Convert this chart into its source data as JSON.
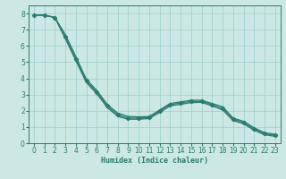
{
  "xlabel": "Humidex (Indice chaleur)",
  "bg_color": "#cce8e4",
  "grid_color": "#99cccc",
  "line_color": "#2a7a70",
  "xlim": [
    -0.5,
    23.5
  ],
  "ylim": [
    0,
    8.5
  ],
  "xticks": [
    0,
    1,
    2,
    3,
    4,
    5,
    6,
    7,
    8,
    9,
    10,
    11,
    12,
    13,
    14,
    15,
    16,
    17,
    18,
    19,
    20,
    21,
    22,
    23
  ],
  "yticks": [
    0,
    1,
    2,
    3,
    4,
    5,
    6,
    7,
    8
  ],
  "line_upper_x": [
    0,
    1,
    2,
    3,
    4,
    5,
    6,
    7,
    8,
    9,
    10,
    11,
    12,
    13,
    14,
    15,
    16,
    17,
    18,
    19,
    20,
    21,
    22,
    23
  ],
  "line_upper_y": [
    7.9,
    7.9,
    7.75,
    6.7,
    5.35,
    3.95,
    3.25,
    2.4,
    1.85,
    1.65,
    1.62,
    1.65,
    2.05,
    2.45,
    2.55,
    2.65,
    2.65,
    2.45,
    2.25,
    1.55,
    1.35,
    0.95,
    0.65,
    0.55
  ],
  "line_mid_x": [
    0,
    1,
    2,
    3,
    4,
    5,
    6,
    7,
    8,
    9,
    10,
    11,
    12,
    13,
    14,
    15,
    16,
    17,
    18,
    19,
    20,
    21,
    22,
    23
  ],
  "line_mid_y": [
    7.9,
    7.9,
    7.75,
    6.55,
    5.2,
    3.85,
    3.15,
    2.3,
    1.75,
    1.55,
    1.55,
    1.58,
    1.98,
    2.38,
    2.48,
    2.58,
    2.58,
    2.38,
    2.15,
    1.48,
    1.28,
    0.88,
    0.58,
    0.48
  ],
  "line_lower_x": [
    0,
    1,
    2,
    3,
    4,
    5,
    6,
    7,
    8,
    9,
    10,
    11,
    12,
    13,
    14,
    15,
    16,
    17,
    18,
    19,
    20,
    21,
    22,
    23
  ],
  "line_lower_y": [
    7.9,
    7.9,
    7.75,
    6.45,
    5.1,
    3.75,
    3.05,
    2.2,
    1.65,
    1.48,
    1.48,
    1.52,
    1.9,
    2.3,
    2.4,
    2.5,
    2.52,
    2.3,
    2.05,
    1.4,
    1.2,
    0.8,
    0.52,
    0.42
  ]
}
